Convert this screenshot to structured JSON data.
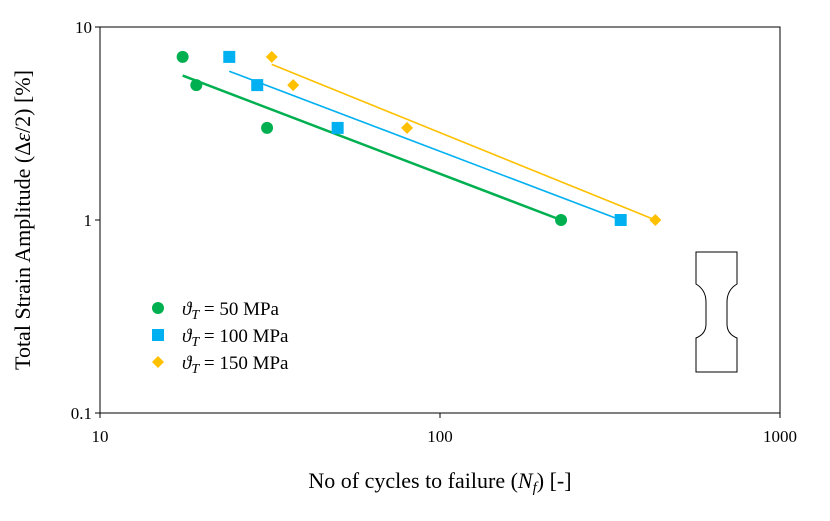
{
  "chart_data": {
    "type": "scatter",
    "x_scale": "log",
    "y_scale": "log",
    "xlim": [
      10,
      1000
    ],
    "ylim": [
      0.1,
      10
    ],
    "x_ticks": [
      "10",
      "100",
      "1000"
    ],
    "y_ticks": [
      "0.1",
      "1",
      "10"
    ],
    "xlabel": {
      "prefix": "No of cycles to failure (",
      "symbol": "N",
      "subscript": "f",
      "suffix": ") [-]"
    },
    "ylabel": {
      "prefix": "Total Strain Amplitude (Δ",
      "symbol": "ε",
      "suffix": "/2) [%]"
    },
    "grid": false,
    "legend_position": "bottom-left",
    "series": [
      {
        "name": "ϑT = 50 MPa",
        "legend": {
          "symbol": "ϑ",
          "subscript": "T",
          "rest": " = 50 MPa"
        },
        "marker": "circle",
        "color": "#00b050",
        "x": [
          17.5,
          19.2,
          31,
          227
        ],
        "y": [
          7,
          5,
          3,
          1
        ],
        "trend_x": [
          17.5,
          227
        ],
        "trend_y": [
          5.6,
          1.0
        ]
      },
      {
        "name": "ϑT = 100 MPa",
        "legend": {
          "symbol": "ϑ",
          "subscript": "T",
          "rest": " = 100 MPa"
        },
        "marker": "square",
        "color": "#00b0f0",
        "x": [
          24,
          29,
          50,
          340
        ],
        "y": [
          7,
          5,
          3,
          1
        ],
        "trend_x": [
          24,
          340
        ],
        "trend_y": [
          5.9,
          1.0
        ]
      },
      {
        "name": "ϑT = 150 MPa",
        "legend": {
          "symbol": "ϑ",
          "subscript": "T",
          "rest": " = 150 MPa"
        },
        "marker": "diamond",
        "color": "#ffc000",
        "x": [
          32,
          37,
          80,
          430
        ],
        "y": [
          7,
          5,
          3,
          1
        ],
        "trend_x": [
          32,
          430
        ],
        "trend_y": [
          6.4,
          1.0
        ]
      }
    ]
  }
}
